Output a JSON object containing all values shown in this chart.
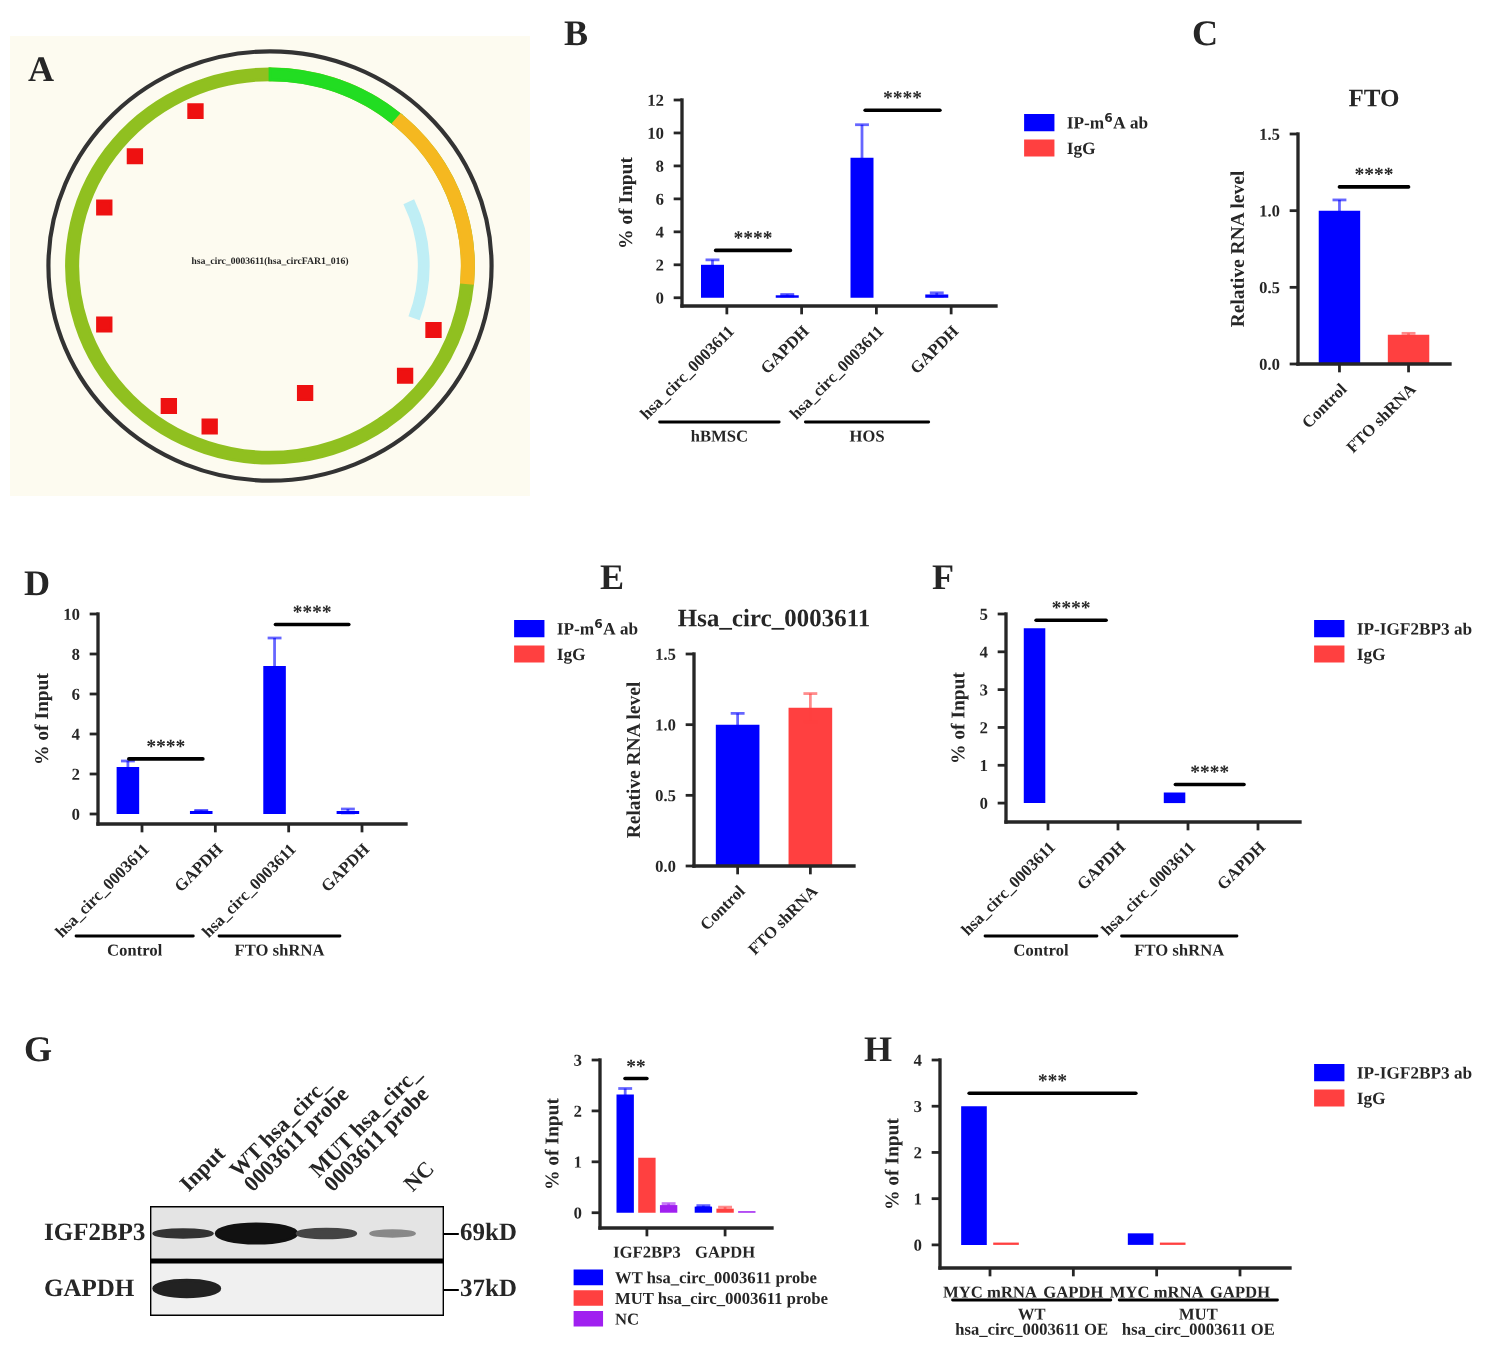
{
  "chart_data": [
    {
      "type": "other",
      "annotations": [
        "A",
        "hsa_circ_0003611(hsa_circFAR1_016)"
      ]
    },
    {
      "type": "bar",
      "categories": [
        "hsa_circ_0003611",
        "GAPDH",
        "hsa_circ_0003611",
        "GAPDH"
      ],
      "ylabel": "% of Input",
      "ylim": [
        -0.5,
        12
      ],
      "yticks": [
        0,
        2,
        4,
        6,
        8,
        10,
        12
      ],
      "legend": "right",
      "series": [
        {
          "name": "IP-m$^{6}$A ab",
          "color": "#0000ff",
          "values": [
            2.0,
            0.15,
            8.5,
            0.2
          ],
          "errors": [
            0.3,
            0.05,
            2.0,
            0.1
          ]
        },
        {
          "name": "IgG",
          "color": "#ff4040",
          "values": [
            0.0,
            0.0,
            0.0,
            0.0
          ]
        }
      ],
      "annotations": [
        "B",
        "****",
        "****",
        "hBMSC",
        "HOS"
      ]
    },
    {
      "type": "bar",
      "title": "FTO",
      "categories": [
        "Control",
        "FTO shRNA"
      ],
      "ylabel": "Relative RNA level",
      "ylim": [
        0,
        1.5
      ],
      "yticks": [
        {
          "value": 0,
          "label": "0.0"
        },
        {
          "value": 0.5,
          "label": "0.5"
        },
        {
          "value": 1,
          "label": "1.0"
        },
        {
          "value": 1.5,
          "label": "1.5"
        }
      ],
      "values": [
        1.0,
        0.19
      ],
      "colors": [
        "#0000ff",
        "#ff4040"
      ],
      "errors": [
        0.07,
        0.01
      ],
      "annotations": [
        "C",
        "****"
      ]
    },
    {
      "type": "bar",
      "categories": [
        "hsa_circ_0003611",
        "GAPDH",
        "hsa_circ_0003611",
        "GAPDH"
      ],
      "ylabel": "% of Input",
      "ylim": [
        -0.5,
        10
      ],
      "yticks": [
        0,
        2,
        4,
        6,
        8,
        10
      ],
      "legend": "right",
      "series": [
        {
          "name": "IP-m$^{6}$A ab",
          "color": "#0000ff",
          "values": [
            2.35,
            0.15,
            7.4,
            0.15
          ],
          "errors": [
            0.3,
            0.03,
            1.4,
            0.1
          ]
        },
        {
          "name": "IgG",
          "color": "#ff4040",
          "values": [
            0.0,
            0.0,
            0.0,
            0.0
          ]
        }
      ],
      "annotations": [
        "D",
        "****",
        "****",
        "Control",
        "FTO shRNA"
      ]
    },
    {
      "type": "bar",
      "title": "Hsa_circ_0003611",
      "categories": [
        "Control",
        "FTO shRNA"
      ],
      "ylabel": "Relative RNA level",
      "ylim": [
        0,
        1.5
      ],
      "yticks": [
        {
          "value": 0,
          "label": "0.0"
        },
        {
          "value": 0.5,
          "label": "0.5"
        },
        {
          "value": 1,
          "label": "1.0"
        },
        {
          "value": 1.5,
          "label": "1.5"
        }
      ],
      "values": [
        1.0,
        1.12
      ],
      "colors": [
        "#0000ff",
        "#ff4040"
      ],
      "errors": [
        0.08,
        0.1
      ],
      "annotations": [
        "E"
      ]
    },
    {
      "type": "bar",
      "categories": [
        "hsa_circ_0003611",
        "GAPDH",
        "hsa_circ_0003611",
        "GAPDH"
      ],
      "ylabel": "% of Input",
      "ylim": [
        -0.5,
        5
      ],
      "yticks": [
        0,
        1,
        2,
        3,
        4,
        5
      ],
      "legend": "right",
      "series": [
        {
          "name": "IP-IGF2BP3 ab",
          "color": "#0000ff",
          "values": [
            4.62,
            0.0,
            0.28,
            0.0
          ]
        },
        {
          "name": "IgG",
          "color": "#ff4040",
          "values": [
            0.0,
            0.0,
            0.0,
            0.0
          ]
        }
      ],
      "annotations": [
        "F",
        "****",
        "****",
        "Control",
        "FTO shRNA"
      ]
    },
    {
      "type": "other",
      "annotations": [
        "G",
        "Input",
        "WT hsa_circ_\n0003611 probe",
        "MUT hsa_circ_\n0003611 probe",
        "NC",
        "IGF2BP3",
        "GAPDH",
        "69kD",
        "37kD"
      ]
    },
    {
      "type": "bar",
      "categories": [
        "IGF2BP3",
        "GAPDH"
      ],
      "ylabel": "% of Input",
      "ylim": [
        -0.3,
        3
      ],
      "yticks": [
        0,
        1,
        2,
        3
      ],
      "legend": "bottom",
      "series": [
        {
          "name": "WT hsa_circ_0003611 probe",
          "color": "#0000ff",
          "values": [
            2.32,
            0.12
          ],
          "errors": [
            0.12,
            0.02
          ]
        },
        {
          "name": "MUT hsa_circ_0003611 probe",
          "color": "#ff4040",
          "values": [
            1.08,
            0.08
          ],
          "errors": [
            null,
            0.03
          ]
        },
        {
          "name": "NC",
          "color": "#a020f0",
          "values": [
            0.15,
            0.03
          ],
          "errors": [
            0.03,
            null
          ]
        }
      ],
      "annotations": [
        "**"
      ]
    },
    {
      "type": "bar",
      "categories": [
        "MYC mRNA",
        "GAPDH",
        "MYC mRNA",
        "GAPDH"
      ],
      "ylabel": "% of Input",
      "ylim": [
        -0.5,
        4
      ],
      "yticks": [
        0,
        1,
        2,
        3,
        4
      ],
      "legend": "right",
      "series": [
        {
          "name": "IP-IGF2BP3 ab",
          "color": "#0000ff",
          "values": [
            3.0,
            0.0,
            0.25,
            0.0
          ]
        },
        {
          "name": "IgG",
          "color": "#ff4040",
          "values": [
            0.05,
            0.0,
            0.05,
            0.0
          ]
        }
      ],
      "annotations": [
        "H",
        "***",
        "WT\nhsa_circ_0003611 OE",
        "MUT\nhsa_circ_0003611 OE"
      ]
    }
  ]
}
